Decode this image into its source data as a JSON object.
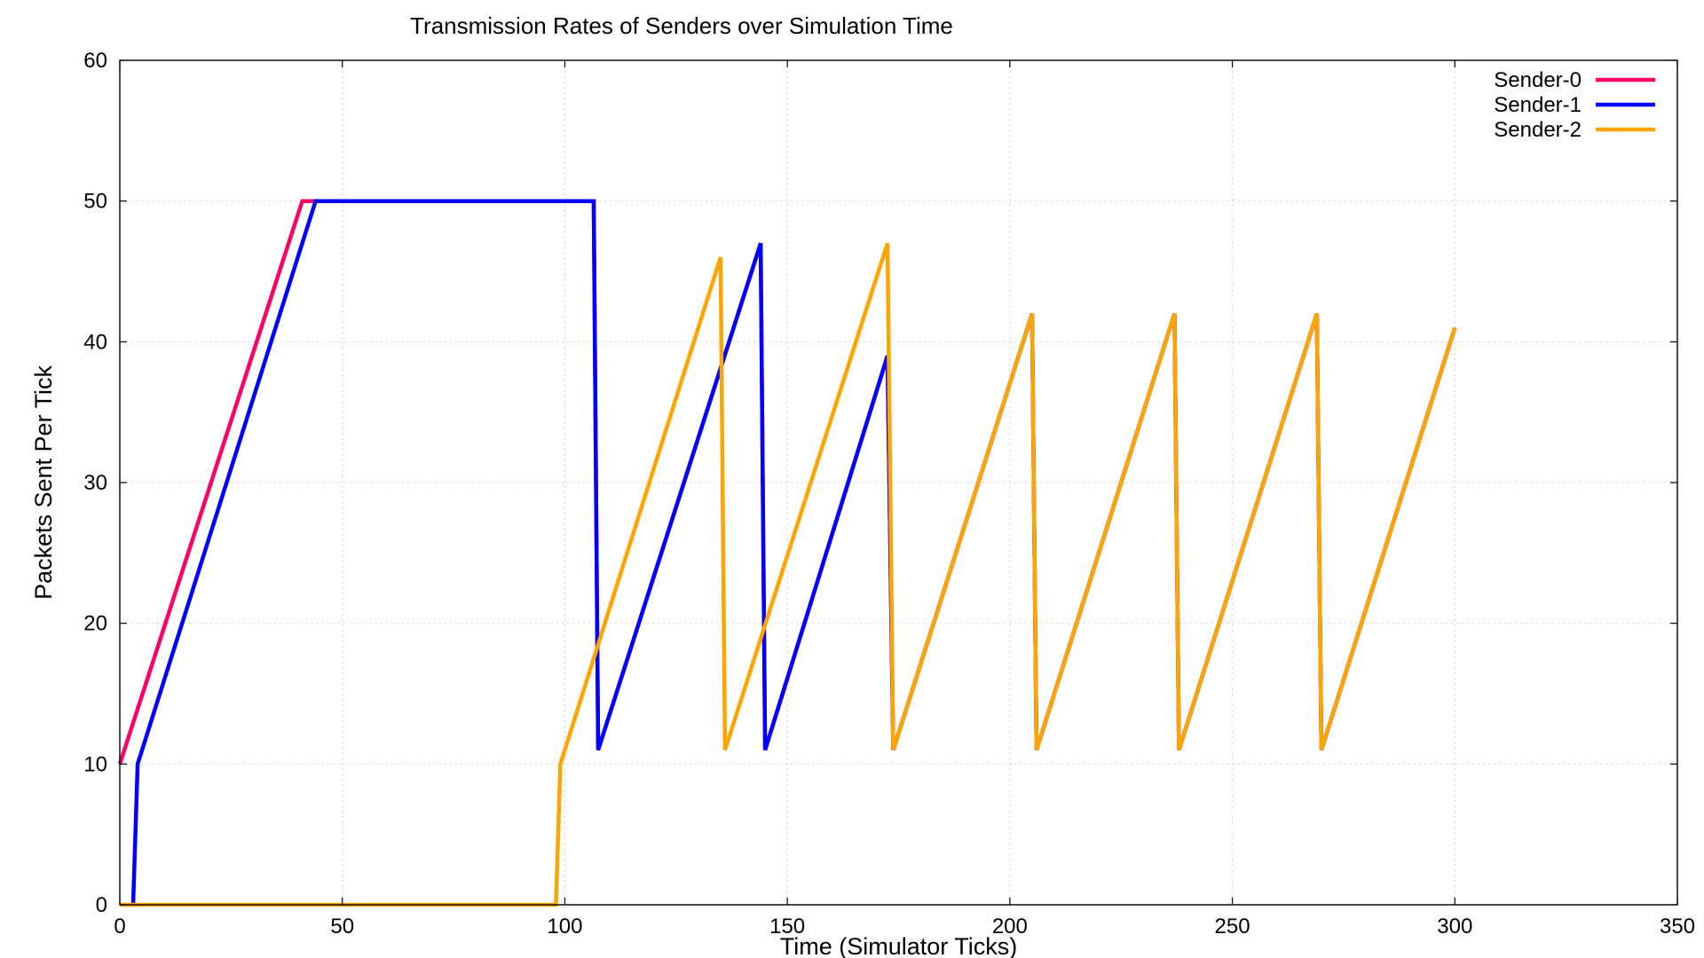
{
  "chart_data": {
    "type": "line",
    "title": "Transmission Rates of Senders over Simulation Time",
    "xlabel": "Time (Simulator Ticks)",
    "ylabel": "Packets Sent Per Tick",
    "xlim": [
      0,
      350
    ],
    "ylim": [
      0,
      60
    ],
    "xticks": [
      0,
      50,
      100,
      150,
      200,
      250,
      300,
      350
    ],
    "yticks": [
      0,
      10,
      20,
      30,
      40,
      50,
      60
    ],
    "grid": true,
    "legend_position": "top-right",
    "series": [
      {
        "name": "Sender-0",
        "color": "#ff0066",
        "points": [
          [
            0,
            10
          ],
          [
            41,
            50
          ],
          [
            44,
            50
          ],
          [
            106.5,
            50
          ],
          [
            107.5,
            11
          ],
          [
            144,
            47
          ],
          [
            145,
            11
          ],
          [
            172.5,
            39
          ],
          [
            173.8,
            11
          ],
          [
            205,
            42
          ],
          [
            206,
            11
          ],
          [
            237,
            42
          ],
          [
            238,
            11
          ],
          [
            269,
            42
          ],
          [
            270,
            11
          ],
          [
            300,
            41
          ]
        ]
      },
      {
        "name": "Sender-1",
        "color": "#0000ff",
        "points": [
          [
            3,
            0
          ],
          [
            4,
            10
          ],
          [
            44,
            50
          ],
          [
            106.5,
            50
          ],
          [
            107.5,
            11
          ],
          [
            144,
            47
          ],
          [
            145,
            11
          ],
          [
            172.5,
            39
          ],
          [
            173.8,
            11
          ],
          [
            205,
            42
          ],
          [
            206,
            11
          ],
          [
            237,
            42
          ],
          [
            238,
            11
          ],
          [
            269,
            42
          ],
          [
            270,
            11
          ],
          [
            300,
            41
          ]
        ]
      },
      {
        "name": "Sender-2",
        "color": "#ffa500",
        "points": [
          [
            0,
            0
          ],
          [
            98,
            0
          ],
          [
            99,
            10
          ],
          [
            135,
            46
          ],
          [
            136,
            11
          ],
          [
            172.5,
            47
          ],
          [
            173.8,
            11
          ],
          [
            205,
            42
          ],
          [
            206,
            11
          ],
          [
            237,
            42
          ],
          [
            238,
            11
          ],
          [
            269,
            42
          ],
          [
            270,
            11
          ],
          [
            300,
            41
          ]
        ]
      }
    ]
  }
}
